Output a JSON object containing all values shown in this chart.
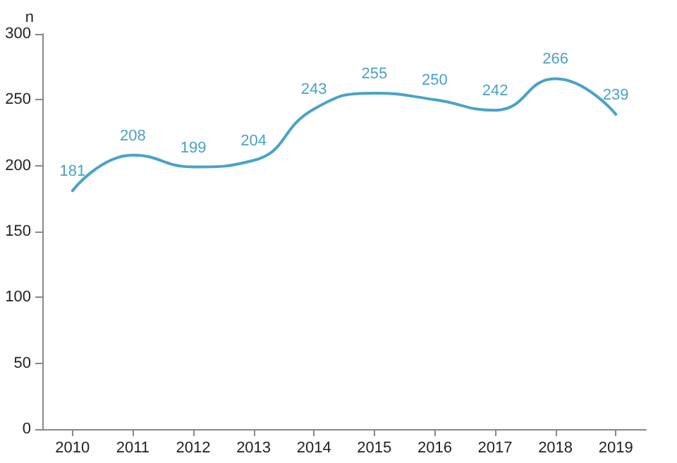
{
  "chart_data": {
    "type": "line",
    "ylabel": "n",
    "categories": [
      "2010",
      "2011",
      "2012",
      "2013",
      "2014",
      "2015",
      "2016",
      "2017",
      "2018",
      "2019"
    ],
    "series": [
      {
        "color": "#4aa3c6",
        "values": [
          181,
          208,
          199,
          204,
          243,
          255,
          250,
          242,
          266,
          239
        ]
      }
    ],
    "ylim": [
      0,
      300
    ],
    "yticks": [
      0,
      50,
      100,
      150,
      200,
      250,
      300
    ],
    "grid": false,
    "marker": "none",
    "line_style": "solid",
    "data_labels": true
  }
}
